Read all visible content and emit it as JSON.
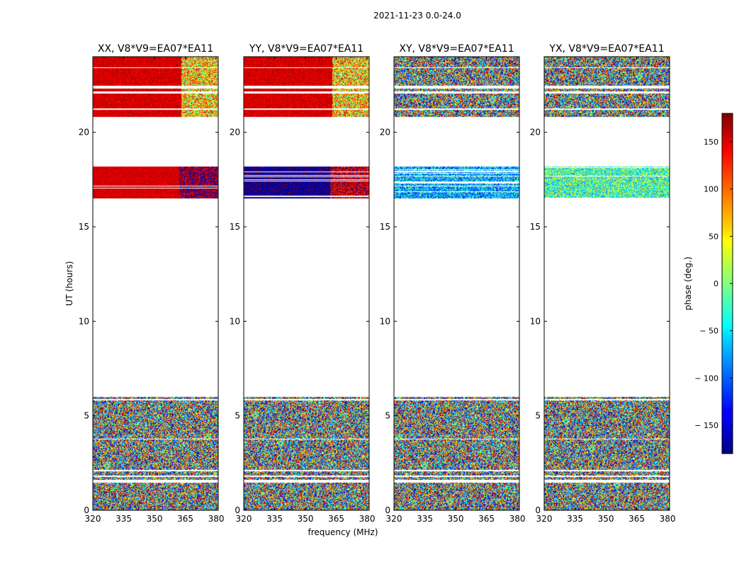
{
  "chart_data": {
    "type": "heatmap",
    "suptitle": "2021-11-23 0.0-24.0",
    "xlabel": "frequency (MHz)",
    "ylabel": "UT (hours)",
    "xlim": [
      320,
      381
    ],
    "ylim": [
      0,
      24
    ],
    "x_ticks": [
      320,
      335,
      350,
      365,
      380
    ],
    "y_ticks": [
      0,
      5,
      10,
      15,
      20
    ],
    "colorbar": {
      "label": "phase (deg.)",
      "colormap": "jet",
      "range": [
        -180,
        180
      ],
      "ticks": [
        150,
        100,
        50,
        0,
        -50,
        -100,
        -150
      ],
      "tick_labels": [
        "150",
        "100",
        "50",
        "0",
        "− 50",
        "− 100",
        "− 150"
      ]
    },
    "data_bands_ut_hours": [
      [
        0.0,
        1.45
      ],
      [
        1.6,
        1.75
      ],
      [
        1.85,
        2.05
      ],
      [
        2.15,
        3.75
      ],
      [
        3.8,
        5.8
      ],
      [
        5.9,
        6.0
      ],
      [
        16.5,
        18.2
      ],
      [
        20.8,
        21.2
      ],
      [
        21.25,
        22.05
      ],
      [
        22.15,
        22.3
      ],
      [
        22.45,
        23.4
      ],
      [
        23.45,
        24.0
      ]
    ],
    "panels": [
      {
        "title": "XX, V8*V9=EA07*EA11",
        "pattern": "parallel",
        "mid_phase": 160,
        "mid_low": 150,
        "mid_high": 170
      },
      {
        "title": "YY, V8*V9=EA07*EA11",
        "pattern": "parallel",
        "mid_phase": -160,
        "mid_low": -170,
        "mid_high": 155
      },
      {
        "title": "XY, V8*V9=EA07*EA11",
        "pattern": "cross",
        "mid_phase": -70
      },
      {
        "title": "YX, V8*V9=EA07*EA11",
        "pattern": "cross",
        "mid_phase": -20
      }
    ]
  }
}
